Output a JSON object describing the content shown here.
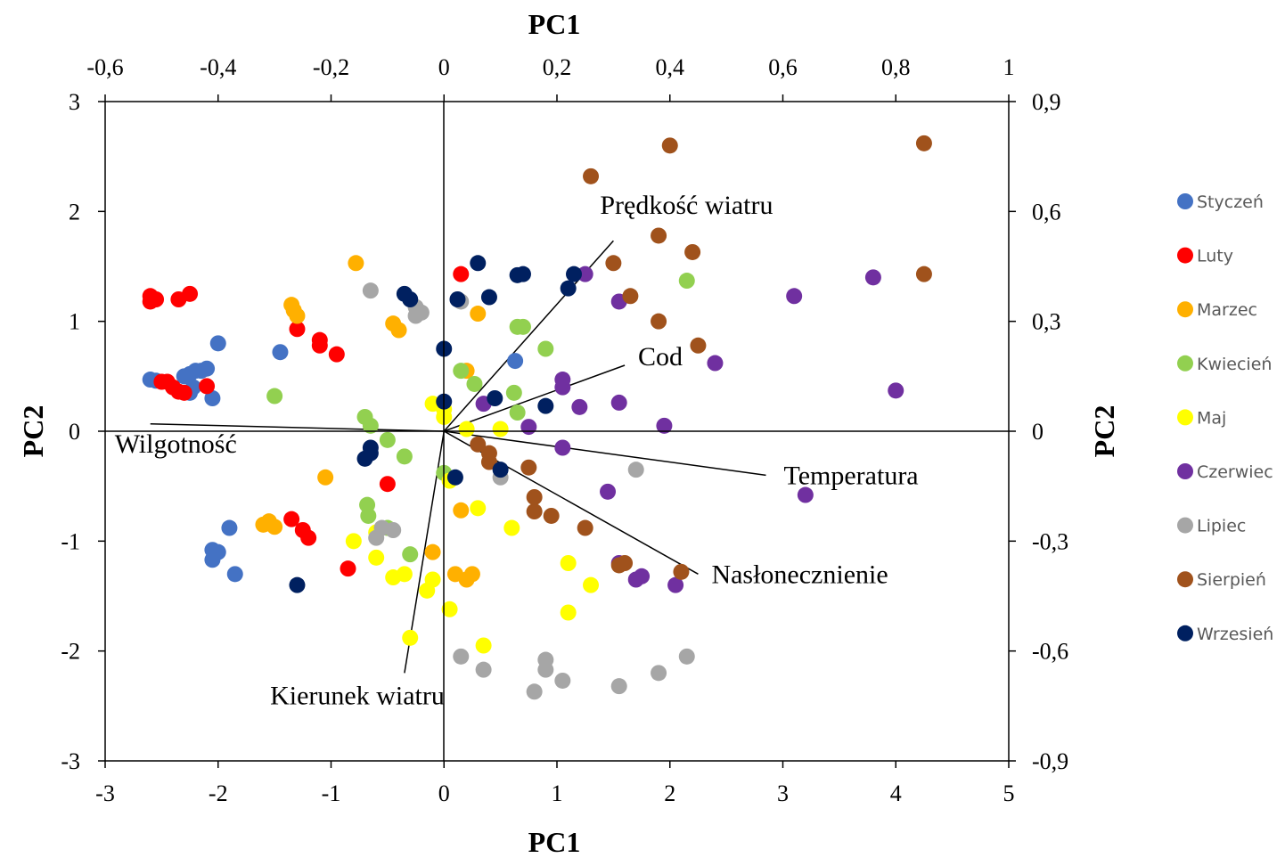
{
  "chart_data": {
    "type": "scatter",
    "title": "",
    "xlabel_bottom": "PC1",
    "xlabel_top": "PC1",
    "ylabel_left": "PC2",
    "ylabel_right": "PC2",
    "xlim": [
      -3,
      5
    ],
    "ylim": [
      -3,
      3
    ],
    "xlim_top": [
      -0.6,
      1
    ],
    "ylim_right": [
      -0.9,
      0.9
    ],
    "x_ticks": [
      "-3",
      "-2",
      "-1",
      "0",
      "1",
      "2",
      "3",
      "4",
      "5"
    ],
    "y_ticks": [
      "-3",
      "-2",
      "-1",
      "0",
      "1",
      "2",
      "3"
    ],
    "x_top_ticks": [
      "-0,6",
      "-0,4",
      "-0,2",
      "0",
      "0,2",
      "0,4",
      "0,6",
      "0,8",
      "1"
    ],
    "y_right_ticks": [
      "-0,9",
      "-0,6",
      "-0,3",
      "0",
      "0,3",
      "0,6",
      "0,9"
    ],
    "legend_position": "right",
    "grid": false,
    "series": [
      {
        "name": "Styczeń",
        "color": "#4472C4",
        "points": [
          [
            -2.6,
            0.47
          ],
          [
            -2.55,
            0.46
          ],
          [
            -2.3,
            0.5
          ],
          [
            -2.25,
            0.52
          ],
          [
            -2.2,
            0.55
          ],
          [
            -2.15,
            0.55
          ],
          [
            -2.1,
            0.57
          ],
          [
            -2.22,
            0.4
          ],
          [
            -2.25,
            0.35
          ],
          [
            -2.05,
            0.3
          ],
          [
            -2.0,
            0.8
          ],
          [
            -1.45,
            0.72
          ],
          [
            -1.9,
            -0.88
          ],
          [
            -2.05,
            -1.08
          ],
          [
            -2.0,
            -1.1
          ],
          [
            -2.05,
            -1.17
          ],
          [
            -1.85,
            -1.3
          ],
          [
            0.63,
            0.64
          ]
        ]
      },
      {
        "name": "Luty",
        "color": "#FF0000",
        "points": [
          [
            -2.6,
            1.23
          ],
          [
            -2.6,
            1.18
          ],
          [
            -2.55,
            1.2
          ],
          [
            -2.35,
            1.2
          ],
          [
            -2.25,
            1.25
          ],
          [
            -2.5,
            0.45
          ],
          [
            -2.45,
            0.45
          ],
          [
            -2.4,
            0.4
          ],
          [
            -2.35,
            0.36
          ],
          [
            -2.3,
            0.35
          ],
          [
            -2.1,
            0.41
          ],
          [
            -1.3,
            0.93
          ],
          [
            -1.1,
            0.83
          ],
          [
            -1.1,
            0.78
          ],
          [
            -0.95,
            0.7
          ],
          [
            -0.5,
            -0.48
          ],
          [
            -1.35,
            -0.8
          ],
          [
            -1.25,
            -0.9
          ],
          [
            -1.2,
            -0.97
          ],
          [
            -0.85,
            -1.25
          ],
          [
            0.15,
            1.43
          ]
        ]
      },
      {
        "name": "Marzec",
        "color": "#FFB000",
        "points": [
          [
            -0.78,
            1.53
          ],
          [
            -1.35,
            1.15
          ],
          [
            -1.33,
            1.1
          ],
          [
            -1.3,
            1.05
          ],
          [
            -0.45,
            0.98
          ],
          [
            -0.4,
            0.92
          ],
          [
            -1.05,
            -0.42
          ],
          [
            -1.6,
            -0.85
          ],
          [
            -1.55,
            -0.82
          ],
          [
            -1.5,
            -0.87
          ],
          [
            0.3,
            1.07
          ],
          [
            0.2,
            0.55
          ],
          [
            -0.1,
            -1.1
          ],
          [
            0.1,
            -1.3
          ],
          [
            0.25,
            -1.3
          ],
          [
            0.2,
            -1.35
          ],
          [
            0.15,
            -0.72
          ]
        ]
      },
      {
        "name": "Kwiecień",
        "color": "#92D050",
        "points": [
          [
            -1.5,
            0.32
          ],
          [
            -0.7,
            0.13
          ],
          [
            -0.65,
            0.05
          ],
          [
            -0.5,
            -0.08
          ],
          [
            -0.35,
            -0.23
          ],
          [
            -0.68,
            -0.67
          ],
          [
            -0.67,
            -0.77
          ],
          [
            -0.5,
            -0.88
          ],
          [
            -0.3,
            -1.12
          ],
          [
            0.15,
            0.55
          ],
          [
            0.27,
            0.43
          ],
          [
            0.62,
            0.35
          ],
          [
            0.65,
            0.17
          ],
          [
            0.65,
            0.95
          ],
          [
            0.7,
            0.95
          ],
          [
            0.9,
            0.75
          ],
          [
            2.15,
            1.37
          ],
          [
            0.0,
            -0.38
          ]
        ]
      },
      {
        "name": "Maj",
        "color": "#FFFF00",
        "points": [
          [
            -0.1,
            0.25
          ],
          [
            0.0,
            0.2
          ],
          [
            0.0,
            0.13
          ],
          [
            0.2,
            0.02
          ],
          [
            0.5,
            0.02
          ],
          [
            -0.8,
            -1.0
          ],
          [
            -0.6,
            -0.92
          ],
          [
            -0.6,
            -1.15
          ],
          [
            -0.45,
            -1.33
          ],
          [
            -0.35,
            -1.3
          ],
          [
            -0.15,
            -1.45
          ],
          [
            -0.1,
            -1.35
          ],
          [
            0.05,
            -0.45
          ],
          [
            0.3,
            -0.7
          ],
          [
            0.6,
            -0.88
          ],
          [
            1.1,
            -1.2
          ],
          [
            1.3,
            -1.4
          ],
          [
            1.1,
            -1.65
          ],
          [
            0.05,
            -1.62
          ],
          [
            -0.3,
            -1.88
          ],
          [
            0.35,
            -1.95
          ]
        ]
      },
      {
        "name": "Czerwiec",
        "color": "#7030A0",
        "points": [
          [
            1.25,
            1.43
          ],
          [
            1.55,
            1.18
          ],
          [
            3.1,
            1.23
          ],
          [
            3.8,
            1.4
          ],
          [
            2.4,
            0.62
          ],
          [
            1.05,
            0.47
          ],
          [
            1.05,
            0.4
          ],
          [
            1.2,
            0.22
          ],
          [
            1.55,
            0.26
          ],
          [
            0.35,
            0.25
          ],
          [
            0.75,
            0.04
          ],
          [
            1.95,
            0.05
          ],
          [
            1.05,
            -0.15
          ],
          [
            1.45,
            -0.55
          ],
          [
            3.2,
            -0.58
          ],
          [
            4.0,
            0.37
          ],
          [
            1.55,
            -1.2
          ],
          [
            1.7,
            -1.35
          ],
          [
            1.75,
            -1.32
          ],
          [
            2.05,
            -1.4
          ]
        ]
      },
      {
        "name": "Lipiec",
        "color": "#A6A6A6",
        "points": [
          [
            -0.65,
            1.28
          ],
          [
            -0.25,
            1.05
          ],
          [
            -0.25,
            1.13
          ],
          [
            -0.2,
            1.08
          ],
          [
            0.15,
            1.18
          ],
          [
            0.5,
            -0.42
          ],
          [
            1.7,
            -0.35
          ],
          [
            -0.6,
            -0.97
          ],
          [
            -0.55,
            -0.88
          ],
          [
            -0.45,
            -0.9
          ],
          [
            0.15,
            -2.05
          ],
          [
            0.35,
            -2.17
          ],
          [
            0.9,
            -2.08
          ],
          [
            0.9,
            -2.17
          ],
          [
            1.05,
            -2.27
          ],
          [
            0.8,
            -2.37
          ],
          [
            1.55,
            -2.32
          ],
          [
            1.9,
            -2.2
          ],
          [
            2.15,
            -2.05
          ]
        ]
      },
      {
        "name": "Sierpień",
        "color": "#A0521C",
        "points": [
          [
            1.3,
            2.32
          ],
          [
            2.0,
            2.6
          ],
          [
            4.25,
            2.62
          ],
          [
            1.9,
            1.78
          ],
          [
            2.2,
            1.63
          ],
          [
            1.5,
            1.53
          ],
          [
            1.65,
            1.23
          ],
          [
            1.9,
            1.0
          ],
          [
            2.25,
            0.78
          ],
          [
            4.25,
            1.43
          ],
          [
            0.3,
            -0.12
          ],
          [
            0.4,
            -0.2
          ],
          [
            0.4,
            -0.28
          ],
          [
            0.75,
            -0.33
          ],
          [
            0.8,
            -0.6
          ],
          [
            0.8,
            -0.73
          ],
          [
            0.95,
            -0.77
          ],
          [
            1.25,
            -0.88
          ],
          [
            1.55,
            -1.22
          ],
          [
            1.6,
            -1.2
          ],
          [
            2.1,
            -1.28
          ]
        ]
      },
      {
        "name": "Wrzesień",
        "color": "#002060",
        "points": [
          [
            0.3,
            1.53
          ],
          [
            0.65,
            1.42
          ],
          [
            0.7,
            1.43
          ],
          [
            1.15,
            1.43
          ],
          [
            1.1,
            1.3
          ],
          [
            0.12,
            1.2
          ],
          [
            0.4,
            1.22
          ],
          [
            -0.35,
            1.25
          ],
          [
            -0.3,
            1.2
          ],
          [
            0.0,
            0.75
          ],
          [
            0.0,
            0.27
          ],
          [
            0.45,
            0.3
          ],
          [
            0.9,
            0.23
          ],
          [
            -0.7,
            -0.25
          ],
          [
            -0.65,
            -0.2
          ],
          [
            -0.65,
            -0.15
          ],
          [
            0.1,
            -0.42
          ],
          [
            0.5,
            -0.35
          ],
          [
            -1.3,
            -1.4
          ]
        ]
      }
    ],
    "vectors": [
      {
        "name": "Prędkość wiatru",
        "pc1": 0.3,
        "pc2": 0.52
      },
      {
        "name": "Cod",
        "pc1": 0.32,
        "pc2": 0.18
      },
      {
        "name": "Temperatura",
        "pc1": 0.57,
        "pc2": -0.12
      },
      {
        "name": "Nasłonecznienie",
        "pc1": 0.45,
        "pc2": -0.39
      },
      {
        "name": "Wilgotność",
        "pc1": -0.52,
        "pc2": 0.02
      },
      {
        "name": "Kierunek wiatru",
        "pc1": -0.07,
        "pc2": -0.66
      }
    ]
  }
}
